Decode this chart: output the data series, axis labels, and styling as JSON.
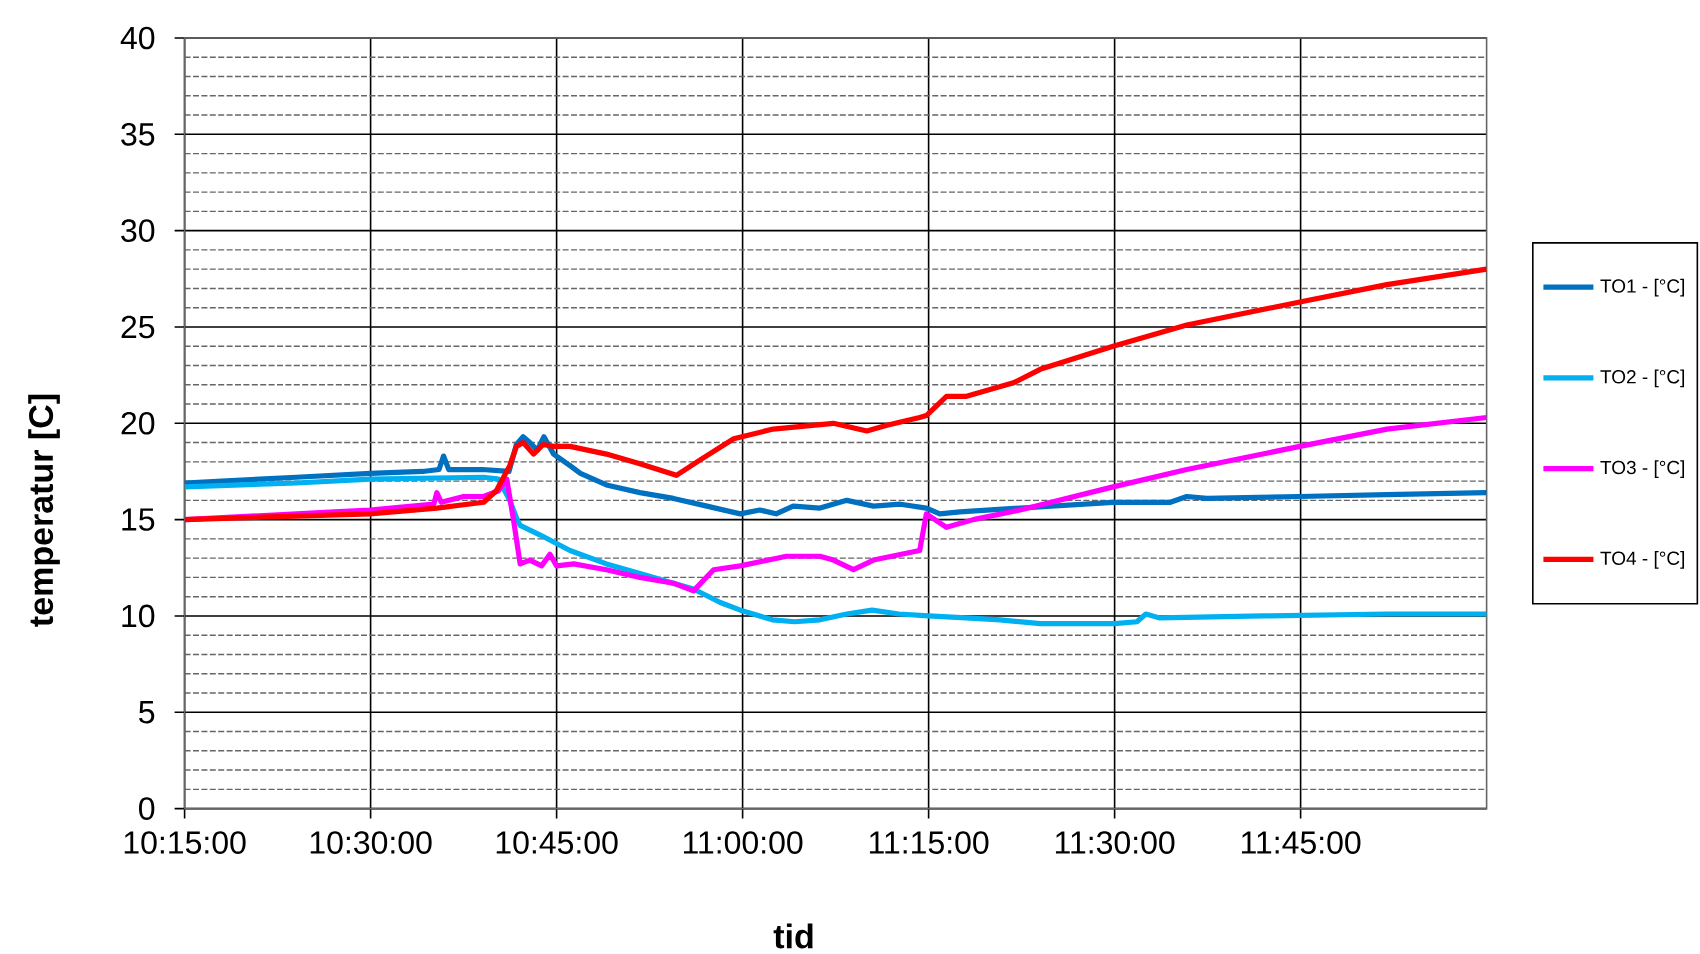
{
  "chart_data": {
    "type": "line",
    "xlabel": "tid",
    "ylabel": "temperatur [C]",
    "xlim": [
      10.25,
      12.0
    ],
    "xticks": [
      {
        "value": 10.25,
        "label": "10:15:00"
      },
      {
        "value": 10.5,
        "label": "10:30:00"
      },
      {
        "value": 10.75,
        "label": "10:45:00"
      },
      {
        "value": 11.0,
        "label": "11:00:00"
      },
      {
        "value": 11.25,
        "label": "11:15:00"
      },
      {
        "value": 11.5,
        "label": "11:30:00"
      },
      {
        "value": 11.75,
        "label": "11:45:00"
      }
    ],
    "ylim": [
      0,
      40
    ],
    "yticks": [
      0,
      {
        "value": 1,
        "label": null
      },
      {
        "value": 2,
        "label": null
      },
      {
        "value": 3,
        "label": null
      },
      {
        "value": 4,
        "label": null
      },
      5,
      {
        "value": 6,
        "label": null
      },
      {
        "value": 7,
        "label": null
      },
      {
        "value": 8,
        "label": null
      },
      {
        "value": 9,
        "label": null
      },
      10,
      {
        "value": 11,
        "label": null
      },
      {
        "value": 12,
        "label": null
      },
      {
        "value": 13,
        "label": null
      },
      {
        "value": 14,
        "label": null
      },
      15,
      {
        "value": 16,
        "label": null
      },
      {
        "value": 17,
        "label": null
      },
      {
        "value": 18,
        "label": null
      },
      {
        "value": 19,
        "label": null
      },
      20,
      {
        "value": 21,
        "label": null
      },
      {
        "value": 22,
        "label": null
      },
      {
        "value": 23,
        "label": null
      },
      {
        "value": 24,
        "label": null
      },
      25,
      {
        "value": 26,
        "label": null
      },
      {
        "value": 27,
        "label": null
      },
      {
        "value": 28,
        "label": null
      },
      {
        "value": 29,
        "label": null
      },
      30,
      {
        "value": 31,
        "label": null
      },
      {
        "value": 32,
        "label": null
      },
      {
        "value": 33,
        "label": null
      },
      {
        "value": 34,
        "label": null
      },
      35,
      {
        "value": 36,
        "label": null
      },
      {
        "value": 37,
        "label": null
      },
      {
        "value": 38,
        "label": null
      },
      {
        "value": 39,
        "label": null
      },
      40
    ],
    "grid": true,
    "legend": "right",
    "series": [
      {
        "name": "TO1 - [°C]",
        "color": "#0070c0",
        "x": [
          10.25,
          10.3,
          10.4,
          10.5,
          10.57,
          10.592,
          10.598,
          10.605,
          10.65,
          10.686,
          10.696,
          10.705,
          10.714,
          10.724,
          10.733,
          10.746,
          10.768,
          10.782,
          10.817,
          10.862,
          10.907,
          10.952,
          10.997,
          11.023,
          11.045,
          11.068,
          11.104,
          11.14,
          11.176,
          11.212,
          11.247,
          11.265,
          11.292,
          11.373,
          11.498,
          11.575,
          11.597,
          11.624,
          11.749,
          11.866,
          12.0
        ],
        "values": [
          16.9,
          17.0,
          17.2,
          17.4,
          17.5,
          17.6,
          18.3,
          17.6,
          17.6,
          17.5,
          18.9,
          19.3,
          19.0,
          18.6,
          19.3,
          18.4,
          17.8,
          17.4,
          16.8,
          16.4,
          16.1,
          15.7,
          15.3,
          15.5,
          15.3,
          15.7,
          15.6,
          16.0,
          15.7,
          15.8,
          15.6,
          15.3,
          15.4,
          15.6,
          15.9,
          15.9,
          16.2,
          16.1,
          16.2,
          16.3,
          16.4
        ]
      },
      {
        "name": "TO2 - [°C]",
        "color": "#00b0f0",
        "x": [
          10.25,
          10.4,
          10.5,
          10.652,
          10.672,
          10.687,
          10.697,
          10.701,
          10.728,
          10.768,
          10.817,
          10.862,
          10.907,
          10.934,
          10.97,
          10.997,
          11.04,
          11.07,
          11.104,
          11.14,
          11.174,
          11.21,
          11.25,
          11.3,
          11.346,
          11.4,
          11.5,
          11.53,
          11.542,
          11.56,
          11.7,
          11.866,
          12.0
        ],
        "values": [
          16.7,
          16.9,
          17.1,
          17.2,
          17.1,
          16.0,
          15.0,
          14.7,
          14.2,
          13.4,
          12.7,
          12.2,
          11.7,
          11.4,
          10.7,
          10.3,
          9.8,
          9.7,
          9.8,
          10.1,
          10.3,
          10.1,
          10.0,
          9.9,
          9.8,
          9.6,
          9.6,
          9.7,
          10.1,
          9.9,
          10.0,
          10.1,
          10.1
        ]
      },
      {
        "name": "TO3 - [°C]",
        "color": "#ff00ff",
        "x": [
          10.25,
          10.35,
          10.499,
          10.585,
          10.589,
          10.595,
          10.625,
          10.652,
          10.672,
          10.683,
          10.692,
          10.701,
          10.714,
          10.73,
          10.741,
          10.75,
          10.773,
          10.817,
          10.862,
          10.907,
          10.934,
          10.961,
          10.997,
          11.059,
          11.104,
          11.122,
          11.149,
          11.176,
          11.238,
          11.247,
          11.274,
          11.31,
          11.373,
          11.498,
          11.597,
          11.749,
          11.866,
          12.0
        ],
        "values": [
          15.0,
          15.2,
          15.5,
          15.8,
          16.4,
          15.9,
          16.2,
          16.2,
          16.5,
          17.1,
          15.0,
          12.7,
          12.9,
          12.6,
          13.2,
          12.6,
          12.7,
          12.4,
          12.0,
          11.7,
          11.3,
          12.4,
          12.6,
          13.1,
          13.1,
          12.9,
          12.4,
          12.9,
          13.4,
          15.3,
          14.6,
          15.0,
          15.5,
          16.7,
          17.6,
          18.8,
          19.7,
          20.3
        ]
      },
      {
        "name": "TO4 - [°C]",
        "color": "#ff0000",
        "x": [
          10.25,
          10.499,
          10.589,
          10.652,
          10.669,
          10.687,
          10.696,
          10.705,
          10.719,
          10.732,
          10.746,
          10.768,
          10.817,
          10.862,
          10.911,
          10.943,
          10.988,
          11.041,
          11.122,
          11.167,
          11.194,
          11.238,
          11.247,
          11.274,
          11.301,
          11.364,
          11.4,
          11.498,
          11.597,
          11.749,
          11.866,
          12.0
        ],
        "values": [
          15.0,
          15.3,
          15.6,
          15.9,
          16.5,
          17.8,
          18.8,
          19.0,
          18.4,
          18.9,
          18.8,
          18.8,
          18.4,
          17.9,
          17.3,
          18.1,
          19.2,
          19.7,
          20.0,
          19.6,
          19.9,
          20.3,
          20.4,
          21.4,
          21.4,
          22.1,
          22.8,
          24.0,
          25.1,
          26.3,
          27.2,
          28.0
        ]
      }
    ]
  }
}
